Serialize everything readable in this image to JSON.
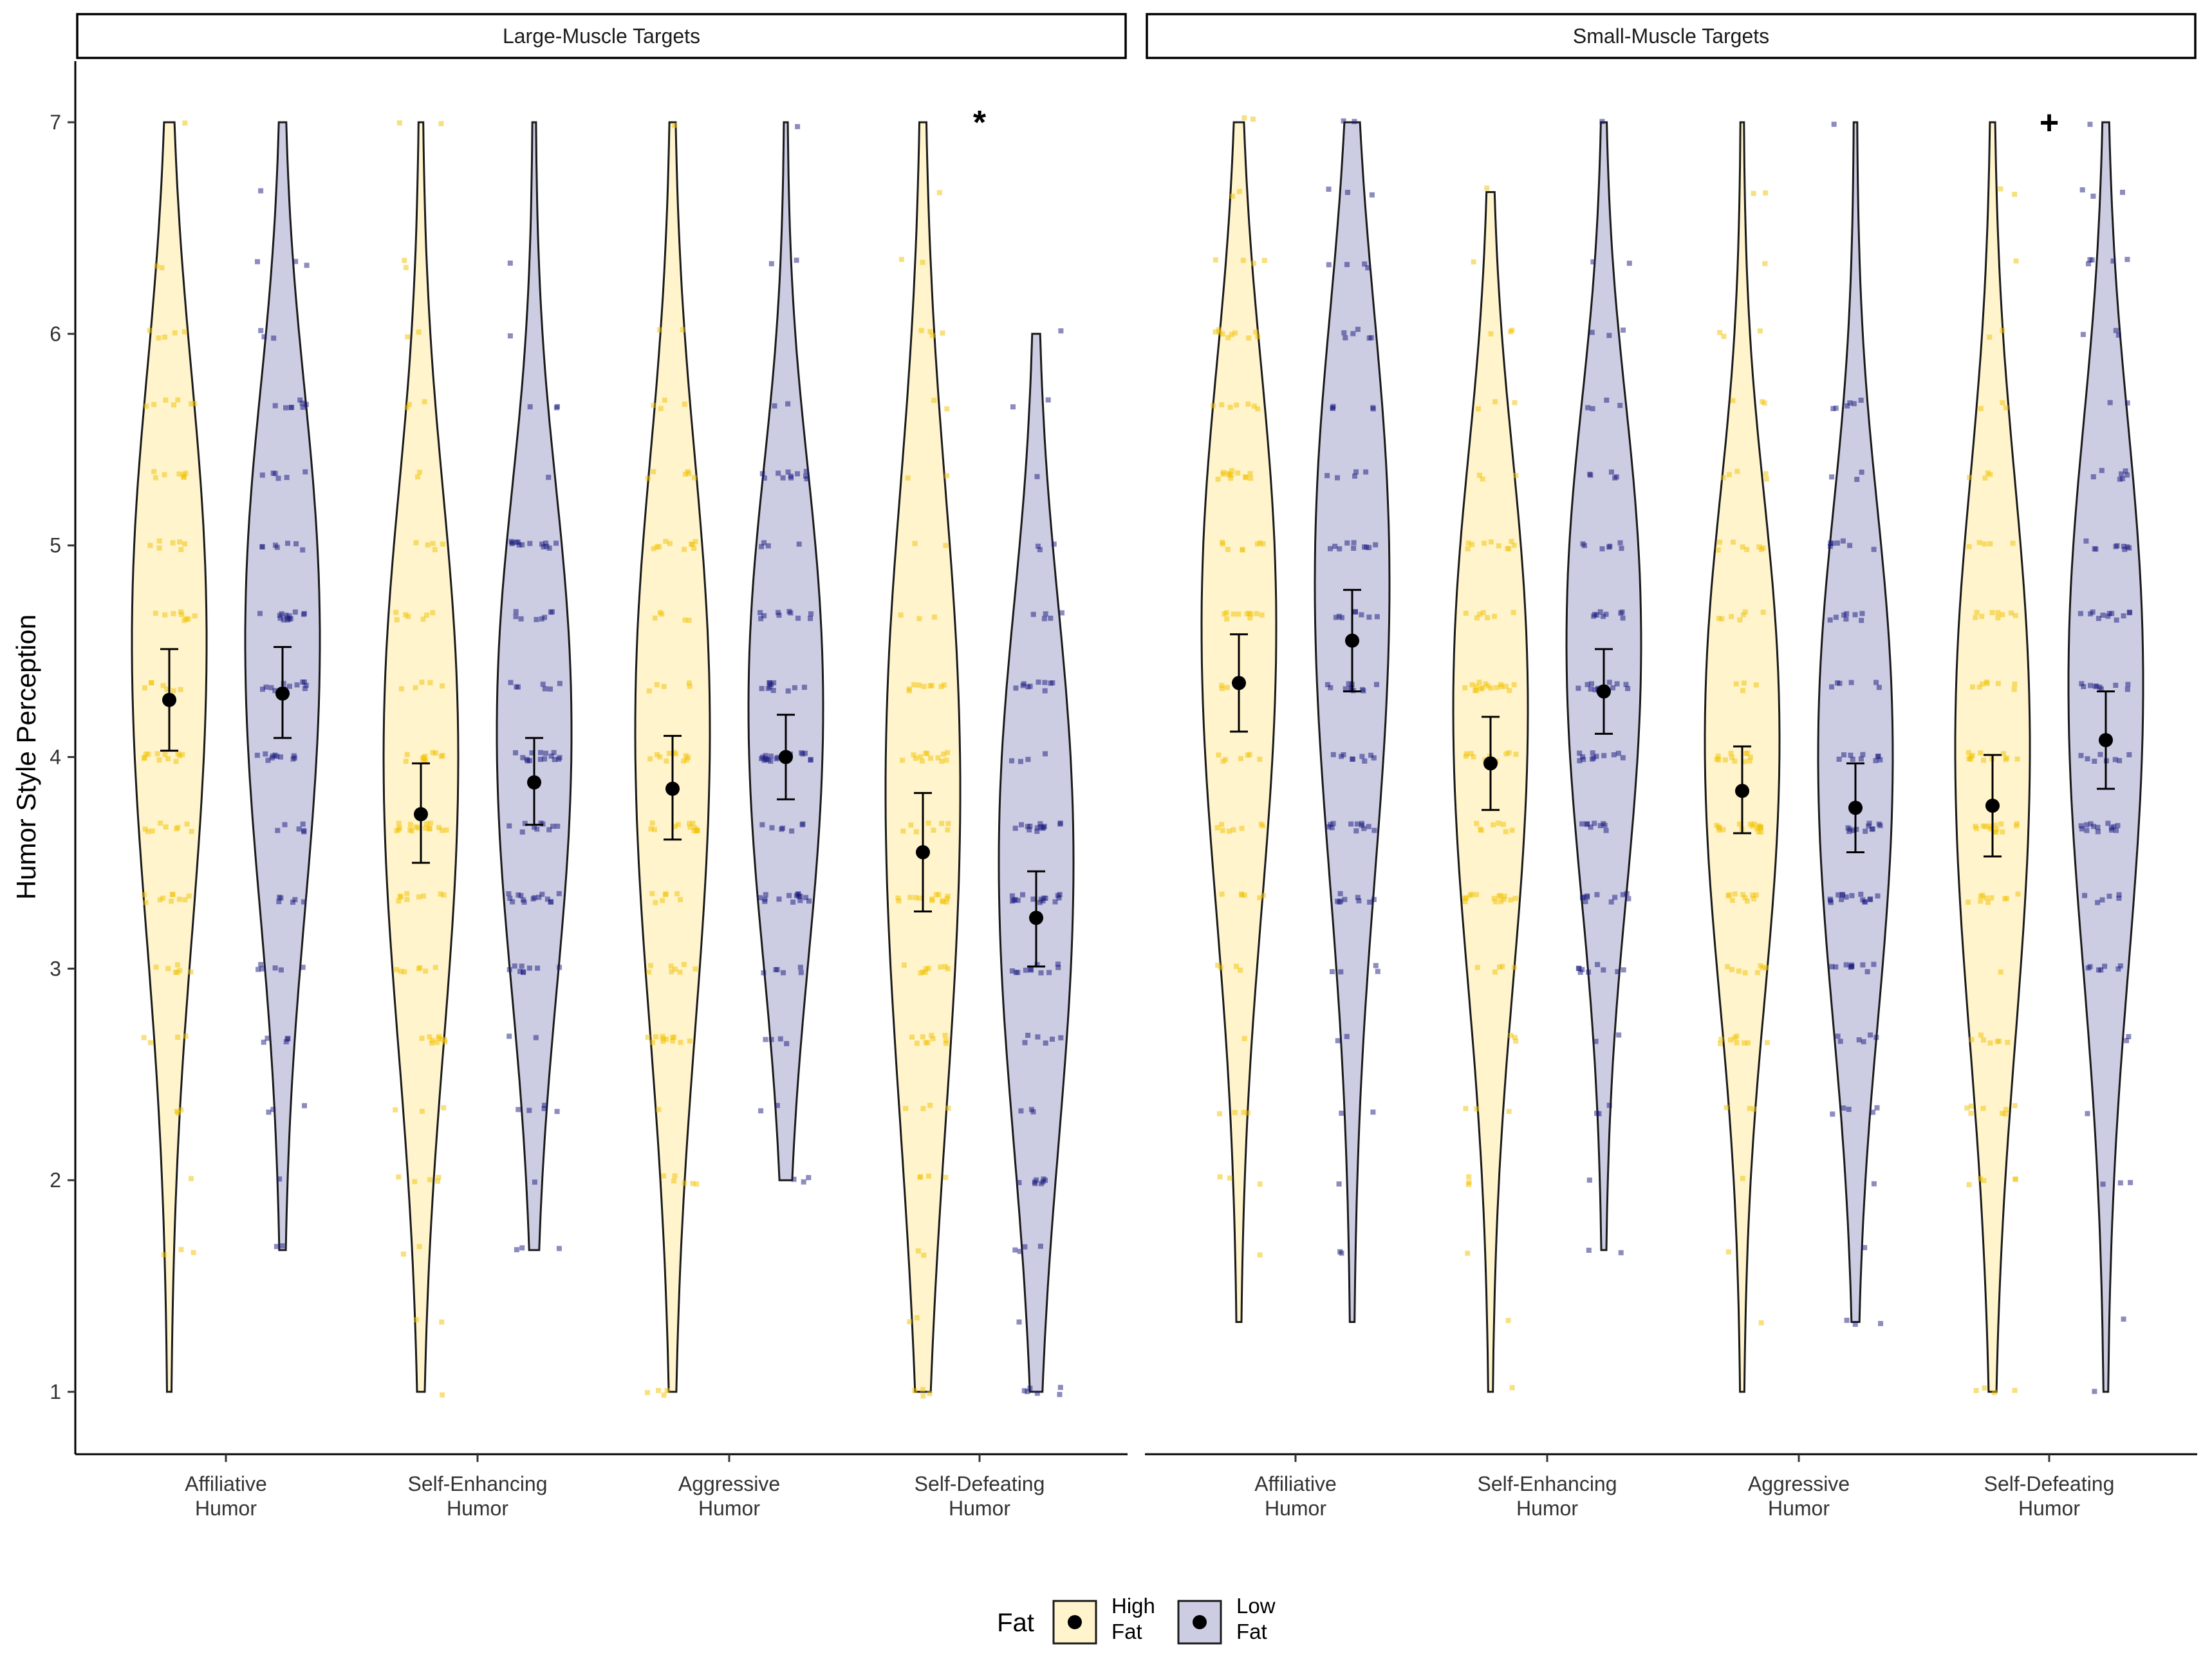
{
  "chart_data": {
    "type": "violin",
    "ylabel": "Humor Style Perception",
    "xlabel": "",
    "ylim": [
      1,
      7
    ],
    "y_ticks": [
      1,
      2,
      3,
      4,
      5,
      6,
      7
    ],
    "categories": [
      "Affiliative\nHumor",
      "Self-Enhancing\nHumor",
      "Aggressive\nHumor",
      "Self-Defeating\nHumor"
    ],
    "grid": false,
    "legend": {
      "title": "Fat",
      "position": "bottom",
      "entries": [
        {
          "label": "High\nFat",
          "fill": "#FFF4CC",
          "point_color": "#F2C200"
        },
        {
          "label": "Low\nFat",
          "fill": "#CCCCE3",
          "point_color": "#1A1A80"
        }
      ]
    },
    "panels": [
      {
        "title": "Large-Muscle Targets",
        "series": [
          {
            "name": "High\nFat",
            "means": [
              4.27,
              3.73,
              3.85,
              3.55
            ],
            "ci_low": [
              4.03,
              3.5,
              3.61,
              3.27
            ],
            "ci_high": [
              4.51,
              3.97,
              4.1,
              3.83
            ],
            "range_min": [
              1.0,
              1.0,
              1.0,
              1.0
            ],
            "range_max": [
              7.0,
              7.0,
              7.0,
              7.0
            ]
          },
          {
            "name": "Low\nFat",
            "means": [
              4.3,
              3.88,
              4.0,
              3.24
            ],
            "ci_low": [
              4.09,
              3.68,
              3.8,
              3.01
            ],
            "ci_high": [
              4.52,
              4.09,
              4.2,
              3.46
            ],
            "range_min": [
              1.67,
              1.67,
              2.0,
              1.0
            ],
            "range_max": [
              7.0,
              7.0,
              7.0,
              6.0
            ]
          }
        ],
        "annotations": [
          {
            "text": "*",
            "category": "Self-Defeating\nHumor",
            "y": 7.0
          }
        ]
      },
      {
        "title": "Small-Muscle Targets",
        "series": [
          {
            "name": "High\nFat",
            "means": [
              4.35,
              3.97,
              3.84,
              3.77
            ],
            "ci_low": [
              4.12,
              3.75,
              3.64,
              3.53
            ],
            "ci_high": [
              4.58,
              4.19,
              4.05,
              4.01
            ],
            "range_min": [
              1.33,
              1.0,
              1.0,
              1.0
            ],
            "range_max": [
              7.0,
              6.67,
              7.0,
              7.0
            ]
          },
          {
            "name": "Low\nFat",
            "means": [
              4.55,
              4.31,
              3.76,
              4.08
            ],
            "ci_low": [
              4.31,
              4.11,
              3.55,
              3.85
            ],
            "ci_high": [
              4.79,
              4.51,
              3.97,
              4.31
            ],
            "range_min": [
              1.33,
              1.67,
              1.33,
              1.0
            ],
            "range_max": [
              7.0,
              7.0,
              7.0,
              7.0
            ]
          }
        ],
        "annotations": [
          {
            "text": "+",
            "category": "Self-Defeating\nHumor",
            "y": 7.0
          }
        ]
      }
    ]
  }
}
